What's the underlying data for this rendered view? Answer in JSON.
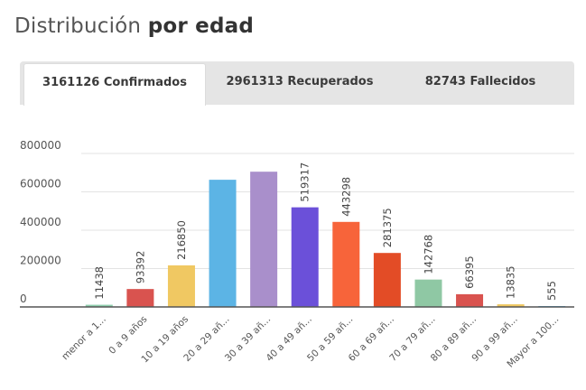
{
  "header": {
    "title_light": "Distribución",
    "title_bold": "por edad"
  },
  "tabs": [
    {
      "label": "3161126 Confirmados",
      "active": true
    },
    {
      "label": "2961313 Recuperados",
      "active": false
    },
    {
      "label": "82743 Fallecidos",
      "active": false
    }
  ],
  "chart_data": {
    "type": "bar",
    "categories": [
      "menor a 1...",
      "0 a 9 años",
      "10 a 19 años",
      "20 a 29 añ...",
      "30 a 39 añ...",
      "40 a 49 añ...",
      "50 a 59 añ...",
      "60 a 69 añ...",
      "70 a 79 añ...",
      "80 a 89 añ...",
      "90 a 99 añ...",
      "Mayor a 100..."
    ],
    "values": [
      11438,
      93392,
      216850,
      663000,
      705000,
      519317,
      443298,
      281375,
      142768,
      66395,
      13835,
      555
    ],
    "data_labels": [
      "11438",
      "93392",
      "216850",
      "",
      "",
      "519317",
      "443298",
      "281375",
      "142768",
      "66395",
      "13835",
      "555"
    ],
    "colors": [
      "#8fcfae",
      "#d9534f",
      "#f0c862",
      "#5cb4e5",
      "#a98fcb",
      "#6b50d9",
      "#f7643a",
      "#e34c26",
      "#8fc8a4",
      "#d9534f",
      "#f0c862",
      "#5cb4e5"
    ],
    "y_ticks": [
      "0",
      "200000",
      "400000",
      "600000",
      "800000"
    ],
    "ylim": [
      0,
      800000
    ],
    "grid": true,
    "xlabel": "",
    "ylabel": "",
    "title": ""
  }
}
